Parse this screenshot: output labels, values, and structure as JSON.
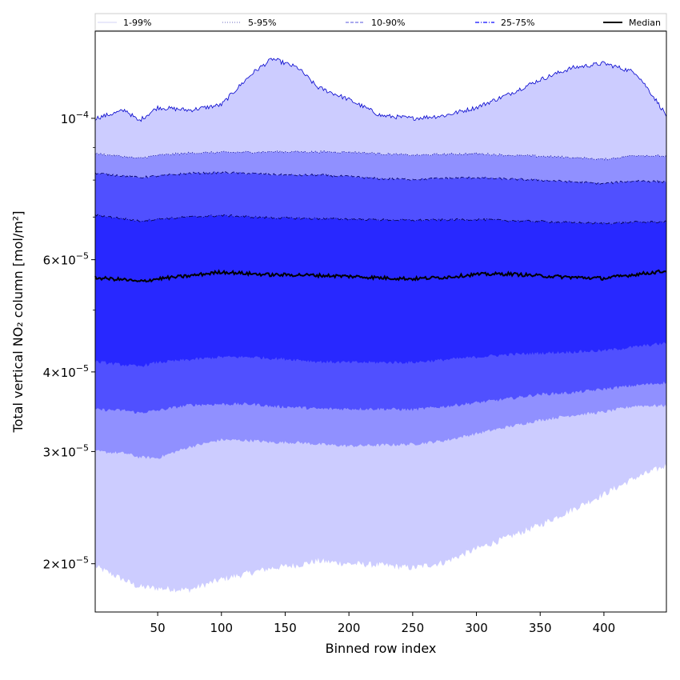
{
  "chart_data": {
    "type": "area",
    "xlabel": "Binned row index",
    "ylabel": "Total vertical NO₂ column [mol/m²]",
    "yscale": "log",
    "xlim": [
      1,
      449
    ],
    "ylim": [
      1.68e-05,
      0.000137
    ],
    "x_ticks": [
      {
        "value": 50,
        "label": "50"
      },
      {
        "value": 100,
        "label": "100"
      },
      {
        "value": 150,
        "label": "150"
      },
      {
        "value": 200,
        "label": "200"
      },
      {
        "value": 250,
        "label": "250"
      },
      {
        "value": 300,
        "label": "300"
      },
      {
        "value": 350,
        "label": "350"
      },
      {
        "value": 400,
        "label": "400"
      }
    ],
    "y_ticks": [
      {
        "value": 2e-05,
        "mantissa": "2",
        "base": "10",
        "exp": "−5"
      },
      {
        "value": 3e-05,
        "mantissa": "3",
        "base": "10",
        "exp": "−5"
      },
      {
        "value": 4e-05,
        "mantissa": "4",
        "base": "10",
        "exp": "−5"
      },
      {
        "value": 6e-05,
        "mantissa": "6",
        "base": "10",
        "exp": "−5"
      },
      {
        "value": 0.0001,
        "mantissa": "",
        "base": "10",
        "exp": "−4"
      }
    ],
    "y_minor_ticks": [
      5e-05,
      7e-05,
      8e-05,
      9e-05
    ],
    "x_knots": [
      1,
      25,
      35,
      50,
      75,
      100,
      125,
      140,
      160,
      175,
      200,
      225,
      250,
      275,
      300,
      325,
      350,
      375,
      400,
      425,
      449
    ],
    "bands": [
      {
        "name": "1-99%",
        "fill": "#ccccff",
        "line_color": "#0000cc",
        "line_style": "solid",
        "lower": [
          19.8,
          18.8,
          18.4,
          18.3,
          18.2,
          18.9,
          19.4,
          19.7,
          19.9,
          20.2,
          20.0,
          19.9,
          19.7,
          20.1,
          21.1,
          22.0,
          23.0,
          24.3,
          25.7,
          27.3,
          28.5
        ],
        "upper": [
          100,
          103,
          99,
          104,
          103,
          105,
          118,
          124,
          120,
          112,
          107,
          101,
          100,
          101,
          104,
          109,
          115,
          120,
          122,
          118,
          101
        ]
      },
      {
        "name": "5-95%",
        "fill": "#9090ff",
        "line_color": "#000088",
        "line_style": "dotted",
        "lower": [
          30.0,
          29.8,
          29.4,
          29.3,
          30.5,
          31.3,
          31.2,
          31.0,
          31.0,
          30.8,
          30.6,
          30.7,
          30.8,
          31.2,
          32.0,
          32.8,
          33.6,
          34.2,
          34.6,
          35.4,
          35.4
        ],
        "upper": [
          88.0,
          87.0,
          86.5,
          87.5,
          88.2,
          88.4,
          88.5,
          88.6,
          88.6,
          88.6,
          88.5,
          88.0,
          87.5,
          87.8,
          88.0,
          87.5,
          87.2,
          86.8,
          86.2,
          87.5,
          87.2
        ]
      },
      {
        "name": "10-90%",
        "fill": "#5050ff",
        "line_color": "#000066",
        "line_style": "dashed",
        "lower": [
          34.9,
          34.8,
          34.5,
          34.8,
          35.5,
          35.6,
          35.6,
          35.3,
          35.2,
          35.0,
          35.0,
          35.0,
          34.9,
          35.3,
          35.8,
          36.3,
          36.9,
          37.1,
          37.6,
          38.1,
          38.5
        ],
        "upper": [
          82.0,
          81.2,
          80.7,
          81.2,
          82.0,
          82.2,
          81.9,
          81.6,
          81.4,
          81.5,
          81.0,
          80.4,
          80.2,
          80.5,
          80.7,
          80.3,
          80.0,
          79.5,
          79.0,
          79.8,
          79.5
        ]
      },
      {
        "name": "25-75%",
        "fill": "#2828ff",
        "line_color": "#000044",
        "line_style": "dashdot",
        "lower": [
          41.5,
          41.0,
          40.8,
          41.4,
          41.8,
          42.2,
          42.2,
          42.0,
          41.8,
          41.5,
          41.4,
          41.4,
          41.4,
          41.8,
          42.2,
          42.6,
          42.8,
          43.0,
          43.2,
          43.8,
          44.4
        ],
        "upper": [
          70.5,
          69.5,
          69.0,
          69.5,
          70.0,
          70.4,
          70.0,
          69.8,
          69.7,
          69.6,
          69.5,
          69.3,
          69.2,
          69.3,
          69.4,
          69.1,
          68.9,
          68.6,
          68.4,
          68.7,
          68.8
        ]
      }
    ],
    "median": {
      "name": "Median",
      "line_color": "#000000",
      "values": [
        56.2,
        55.8,
        55.4,
        56.0,
        56.6,
        57.4,
        57.0,
        56.8,
        56.8,
        56.7,
        56.5,
        56.2,
        56.0,
        56.3,
        56.9,
        57.0,
        56.6,
        56.3,
        56.1,
        56.9,
        57.6
      ]
    },
    "value_unit_multiplier": 1e-06,
    "legend": {
      "position": "top",
      "entries": [
        {
          "label": "1-99%",
          "color": "#0000cc",
          "style": "solid-thin"
        },
        {
          "label": "5-95%",
          "color": "#3333aa",
          "style": "dotted"
        },
        {
          "label": "10-90%",
          "color": "#5555dd",
          "style": "dashed"
        },
        {
          "label": "25-75%",
          "color": "#3333ff",
          "style": "dashdot"
        },
        {
          "label": "Median",
          "color": "#000000",
          "style": "solid-thick"
        }
      ]
    }
  }
}
